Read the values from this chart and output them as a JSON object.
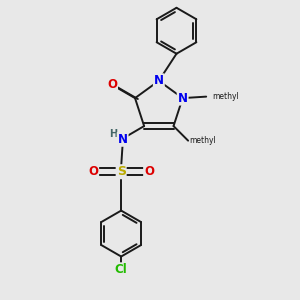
{
  "background_color": "#e8e8e8",
  "bond_color": "#1a1a1a",
  "bond_width": 1.4,
  "atom_colors": {
    "N": "#0000ee",
    "O": "#dd0000",
    "S": "#bbaa00",
    "Cl": "#22bb00",
    "H": "#446666",
    "C": "#1a1a1a"
  },
  "font_size_atom": 8.5,
  "font_size_small": 7.5
}
